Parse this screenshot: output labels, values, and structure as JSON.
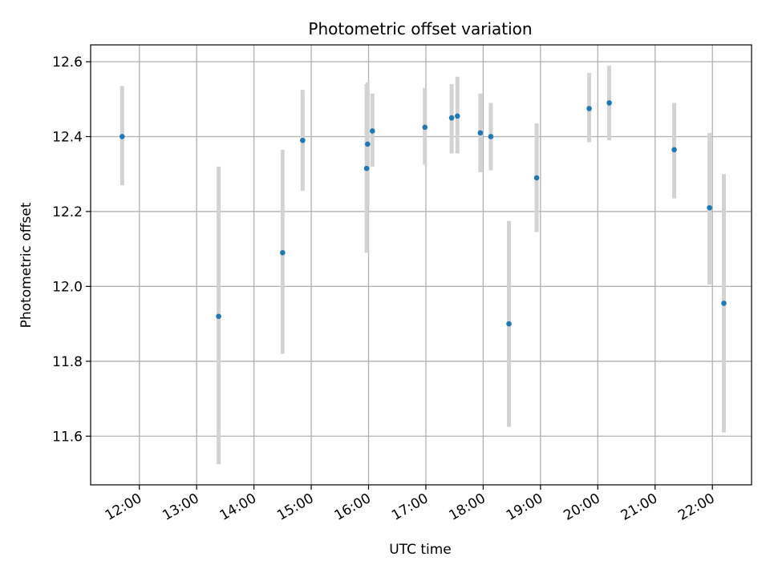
{
  "chart_data": {
    "type": "scatter",
    "title": "Photometric offset variation",
    "xlabel": "UTC time",
    "ylabel": "Photometric offset",
    "x_tick_labels": [
      "12:00",
      "13:00",
      "14:00",
      "15:00",
      "16:00",
      "17:00",
      "18:00",
      "19:00",
      "20:00",
      "21:00",
      "22:00"
    ],
    "y_tick_labels": [
      "11.6",
      "11.8",
      "12.0",
      "12.2",
      "12.4",
      "12.6"
    ],
    "y_ticks": [
      11.6,
      11.8,
      12.0,
      12.2,
      12.4,
      12.6
    ],
    "xlim": [
      "11:09",
      "22:41"
    ],
    "ylim": [
      11.47,
      12.645
    ],
    "grid": true,
    "colors": {
      "point": "#1f77b4",
      "errorbar": "#d3d3d3",
      "grid": "#b0b0b0"
    },
    "points": [
      {
        "x": "11:42",
        "y": 12.4,
        "low": 12.27,
        "high": 12.535
      },
      {
        "x": "13:23",
        "y": 11.92,
        "low": 11.525,
        "high": 12.32
      },
      {
        "x": "14:30",
        "y": 12.09,
        "low": 11.82,
        "high": 12.365
      },
      {
        "x": "14:51",
        "y": 12.39,
        "low": 12.255,
        "high": 12.525
      },
      {
        "x": "15:58",
        "y": 12.315,
        "low": 12.09,
        "high": 12.54
      },
      {
        "x": "15:59",
        "y": 12.38,
        "low": 12.215,
        "high": 12.545
      },
      {
        "x": "16:04",
        "y": 12.415,
        "low": 12.32,
        "high": 12.515
      },
      {
        "x": "16:59",
        "y": 12.425,
        "low": 12.325,
        "high": 12.53
      },
      {
        "x": "17:27",
        "y": 12.45,
        "low": 12.355,
        "high": 12.54
      },
      {
        "x": "17:33",
        "y": 12.455,
        "low": 12.355,
        "high": 12.56
      },
      {
        "x": "17:57",
        "y": 12.41,
        "low": 12.305,
        "high": 12.515
      },
      {
        "x": "18:08",
        "y": 12.4,
        "low": 12.31,
        "high": 12.49
      },
      {
        "x": "18:27",
        "y": 11.9,
        "low": 11.625,
        "high": 12.175
      },
      {
        "x": "18:56",
        "y": 12.29,
        "low": 12.145,
        "high": 12.435
      },
      {
        "x": "19:51",
        "y": 12.475,
        "low": 12.385,
        "high": 12.57
      },
      {
        "x": "20:12",
        "y": 12.49,
        "low": 12.39,
        "high": 12.59
      },
      {
        "x": "21:20",
        "y": 12.365,
        "low": 12.235,
        "high": 12.49
      },
      {
        "x": "21:57",
        "y": 12.21,
        "low": 12.005,
        "high": 12.41
      },
      {
        "x": "22:12",
        "y": 11.955,
        "low": 11.61,
        "high": 12.3
      }
    ]
  }
}
